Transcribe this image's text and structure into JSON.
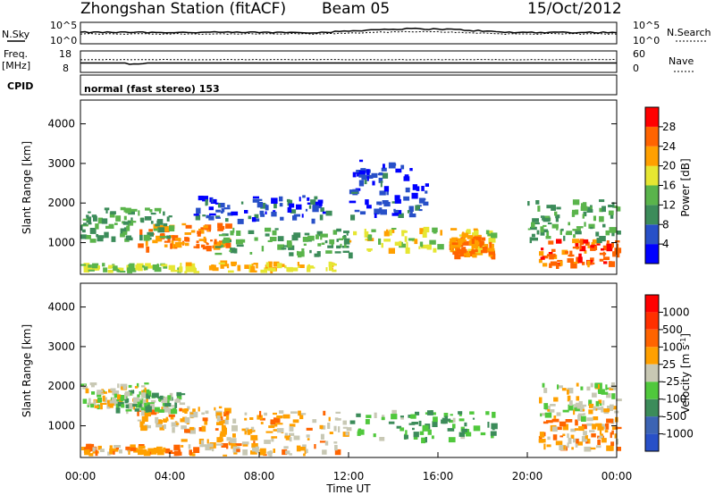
{
  "header": {
    "title": "Zhongshan Station (fitACF)",
    "beam": "Beam 05",
    "date": "15/Oct/2012"
  },
  "top_panels": {
    "nsky_label": "N.Sky",
    "nsearch_label": "N.Search",
    "nsky_ticks": [
      "10^5",
      "10^0"
    ],
    "nsearch_ticks": [
      "10^5",
      "10^0"
    ],
    "freq_label_1": "Freq.",
    "freq_label_2": "[MHz]",
    "freq_ticks": [
      "18",
      "8"
    ],
    "nave_label": "Nave",
    "nave_ticks": [
      "60",
      "0"
    ],
    "cpid_label": "CPID",
    "cpid_text": "normal (fast stereo) 153"
  },
  "power_colorbar": {
    "label": "Power [dB]",
    "ticks": [
      "28",
      "24",
      "20",
      "16",
      "12",
      "8",
      "4"
    ],
    "colors": [
      "#0000ff",
      "#2850c8",
      "#3c8c5a",
      "#5ab44b",
      "#e6e632",
      "#ffa000",
      "#ff6400",
      "#ff0000"
    ]
  },
  "velocity_colorbar": {
    "label": "Velocity [m s",
    "label_sup": "-1",
    "label_end": "]",
    "ticks": [
      "1000",
      "500",
      "100",
      "25",
      "-25",
      "-100",
      "-500",
      "-1000"
    ],
    "colors": [
      "#2850c8",
      "#3c64b4",
      "#3c8c5a",
      "#50c83c",
      "#c8c8b4",
      "#ffa000",
      "#ff6400",
      "#ff3000",
      "#ff0000"
    ]
  },
  "chart_data": [
    {
      "type": "heatmap",
      "name": "power",
      "ylabel": "Slant Range [km]",
      "ylim": [
        200,
        4600
      ],
      "yticks": [
        "4000",
        "3000",
        "2000",
        "1000"
      ],
      "xlim": [
        0,
        24
      ],
      "scale_min": 0,
      "scale_max": 32,
      "regions": [
        {
          "t0": 0.0,
          "t1": 4.5,
          "r0": 250,
          "r1": 500,
          "v": 16
        },
        {
          "t0": 4.5,
          "t1": 11.5,
          "r0": 250,
          "r1": 550,
          "v": 20
        },
        {
          "t0": 2.5,
          "t1": 6.5,
          "r0": 900,
          "r1": 1500,
          "v": 24
        },
        {
          "t0": 0.0,
          "t1": 4.0,
          "r0": 1100,
          "r1": 1900,
          "v": 12
        },
        {
          "t0": 6.0,
          "t1": 12.0,
          "r0": 700,
          "r1": 1400,
          "v": 12
        },
        {
          "t0": 12.0,
          "t1": 18.5,
          "r0": 800,
          "r1": 1400,
          "v": 18
        },
        {
          "t0": 16.5,
          "t1": 18.5,
          "r0": 700,
          "r1": 1200,
          "v": 24
        },
        {
          "t0": 20.5,
          "t1": 24.0,
          "r0": 450,
          "r1": 1100,
          "v": 26
        },
        {
          "t0": 20.0,
          "t1": 24.0,
          "r0": 1100,
          "r1": 2100,
          "v": 12
        },
        {
          "t0": 5.0,
          "t1": 11.0,
          "r0": 1600,
          "r1": 2200,
          "v": 6
        },
        {
          "t0": 12.0,
          "t1": 15.5,
          "r0": 1700,
          "r1": 3100,
          "v": 5
        }
      ]
    },
    {
      "type": "heatmap",
      "name": "velocity",
      "ylabel": "Slant Range [km]",
      "xlabel": "Time UT",
      "ylim": [
        200,
        4600
      ],
      "yticks": [
        "4000",
        "3000",
        "2000",
        "1000"
      ],
      "xticks": [
        "00:00",
        "04:00",
        "08:00",
        "12:00",
        "16:00",
        "20:00",
        "00:00"
      ],
      "xlim": [
        0,
        24
      ],
      "scale_min": -1000,
      "scale_max": 1000,
      "regions": [
        {
          "t0": 0.0,
          "t1": 4.5,
          "r0": 250,
          "r1": 550,
          "v": 300
        },
        {
          "t0": 4.5,
          "t1": 11.5,
          "r0": 250,
          "r1": 700,
          "v": 200
        },
        {
          "t0": 2.5,
          "t1": 6.5,
          "r0": 900,
          "r1": 1500,
          "v": 150
        },
        {
          "t0": 0.0,
          "t1": 3.0,
          "r0": 1500,
          "r1": 2100,
          "v": 0
        },
        {
          "t0": 1.5,
          "t1": 4.5,
          "r0": 1400,
          "r1": 1900,
          "v": -200
        },
        {
          "t0": 6.0,
          "t1": 12.0,
          "r0": 700,
          "r1": 1400,
          "v": 150
        },
        {
          "t0": 12.0,
          "t1": 18.5,
          "r0": 700,
          "r1": 1400,
          "v": -300
        },
        {
          "t0": 20.5,
          "t1": 24.0,
          "r0": 450,
          "r1": 1200,
          "v": 200
        },
        {
          "t0": 20.5,
          "t1": 24.0,
          "r0": 1200,
          "r1": 2100,
          "v": 0
        }
      ]
    }
  ]
}
